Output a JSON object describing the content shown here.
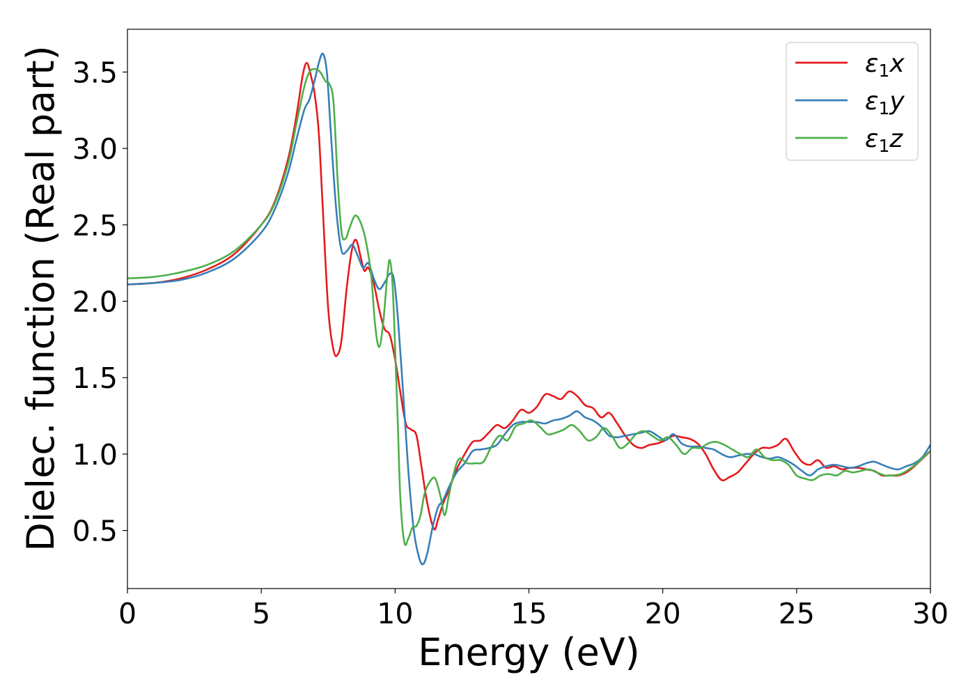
{
  "chart_data": {
    "type": "line",
    "xlabel": "Energy (eV)",
    "ylabel": "Dielec. function (Real part)",
    "xlim": [
      0,
      30
    ],
    "ylim": [
      0.12,
      3.78
    ],
    "xticks": [
      0,
      5,
      10,
      15,
      20,
      25,
      30
    ],
    "xtick_labels": [
      "0",
      "5",
      "10",
      "15",
      "20",
      "25",
      "30"
    ],
    "yticks": [
      0.5,
      1.0,
      1.5,
      2.0,
      2.5,
      3.0,
      3.5
    ],
    "ytick_labels": [
      "0.5",
      "1.0",
      "1.5",
      "2.0",
      "2.5",
      "3.0",
      "3.5"
    ],
    "grid": false,
    "legend_position": "top-right",
    "series": [
      {
        "name": "ε1x",
        "name_base": "ε",
        "name_sub": "1",
        "name_tail": "x",
        "color": "#e41a1c",
        "points": [
          [
            0,
            2.11
          ],
          [
            1,
            2.12
          ],
          [
            2,
            2.15
          ],
          [
            3,
            2.21
          ],
          [
            4,
            2.31
          ],
          [
            5,
            2.5
          ],
          [
            5.5,
            2.65
          ],
          [
            6,
            2.93
          ],
          [
            6.3,
            3.2
          ],
          [
            6.55,
            3.48
          ],
          [
            6.7,
            3.56
          ],
          [
            6.85,
            3.48
          ],
          [
            7.0,
            3.35
          ],
          [
            7.15,
            3.1
          ],
          [
            7.3,
            2.6
          ],
          [
            7.5,
            1.95
          ],
          [
            7.7,
            1.68
          ],
          [
            7.85,
            1.65
          ],
          [
            8.0,
            1.75
          ],
          [
            8.2,
            2.1
          ],
          [
            8.4,
            2.35
          ],
          [
            8.55,
            2.4
          ],
          [
            8.7,
            2.3
          ],
          [
            8.85,
            2.2
          ],
          [
            9.0,
            2.22
          ],
          [
            9.2,
            2.12
          ],
          [
            9.4,
            1.95
          ],
          [
            9.6,
            1.82
          ],
          [
            9.8,
            1.78
          ],
          [
            10.0,
            1.62
          ],
          [
            10.2,
            1.4
          ],
          [
            10.4,
            1.2
          ],
          [
            10.6,
            1.16
          ],
          [
            10.8,
            1.12
          ],
          [
            11.0,
            0.9
          ],
          [
            11.2,
            0.68
          ],
          [
            11.45,
            0.51
          ],
          [
            11.6,
            0.57
          ],
          [
            11.8,
            0.68
          ],
          [
            12.0,
            0.76
          ],
          [
            12.3,
            0.9
          ],
          [
            12.6,
            1.0
          ],
          [
            12.9,
            1.08
          ],
          [
            13.2,
            1.09
          ],
          [
            13.5,
            1.14
          ],
          [
            13.8,
            1.19
          ],
          [
            14.1,
            1.17
          ],
          [
            14.4,
            1.22
          ],
          [
            14.7,
            1.29
          ],
          [
            15.0,
            1.27
          ],
          [
            15.3,
            1.31
          ],
          [
            15.6,
            1.39
          ],
          [
            15.9,
            1.38
          ],
          [
            16.2,
            1.36
          ],
          [
            16.5,
            1.41
          ],
          [
            16.8,
            1.38
          ],
          [
            17.1,
            1.32
          ],
          [
            17.4,
            1.3
          ],
          [
            17.7,
            1.24
          ],
          [
            18.0,
            1.27
          ],
          [
            18.3,
            1.2
          ],
          [
            18.6,
            1.12
          ],
          [
            18.9,
            1.06
          ],
          [
            19.2,
            1.04
          ],
          [
            19.5,
            1.06
          ],
          [
            19.8,
            1.07
          ],
          [
            20.1,
            1.09
          ],
          [
            20.4,
            1.12
          ],
          [
            20.7,
            1.11
          ],
          [
            21.0,
            1.1
          ],
          [
            21.3,
            1.07
          ],
          [
            21.6,
            1.0
          ],
          [
            21.9,
            0.9
          ],
          [
            22.2,
            0.83
          ],
          [
            22.5,
            0.85
          ],
          [
            22.8,
            0.88
          ],
          [
            23.1,
            0.94
          ],
          [
            23.4,
            1.0
          ],
          [
            23.7,
            1.04
          ],
          [
            24.0,
            1.04
          ],
          [
            24.3,
            1.06
          ],
          [
            24.6,
            1.1
          ],
          [
            24.9,
            1.02
          ],
          [
            25.2,
            0.95
          ],
          [
            25.5,
            0.93
          ],
          [
            25.8,
            0.96
          ],
          [
            26.1,
            0.91
          ],
          [
            26.4,
            0.92
          ],
          [
            26.7,
            0.9
          ],
          [
            27.0,
            0.91
          ],
          [
            27.3,
            0.91
          ],
          [
            27.6,
            0.9
          ],
          [
            27.9,
            0.89
          ],
          [
            28.2,
            0.86
          ],
          [
            28.5,
            0.86
          ],
          [
            28.8,
            0.86
          ],
          [
            29.1,
            0.88
          ],
          [
            29.4,
            0.92
          ],
          [
            29.7,
            0.97
          ],
          [
            30.0,
            1.02
          ]
        ]
      },
      {
        "name": "ε1y",
        "name_base": "ε",
        "name_sub": "1",
        "name_tail": "y",
        "color": "#377eb8",
        "points": [
          [
            0,
            2.11
          ],
          [
            1,
            2.12
          ],
          [
            2,
            2.14
          ],
          [
            3,
            2.19
          ],
          [
            4,
            2.28
          ],
          [
            5,
            2.45
          ],
          [
            5.5,
            2.6
          ],
          [
            6,
            2.84
          ],
          [
            6.3,
            3.05
          ],
          [
            6.6,
            3.25
          ],
          [
            6.8,
            3.32
          ],
          [
            7.0,
            3.45
          ],
          [
            7.15,
            3.56
          ],
          [
            7.3,
            3.62
          ],
          [
            7.45,
            3.5
          ],
          [
            7.6,
            3.1
          ],
          [
            7.8,
            2.6
          ],
          [
            8.0,
            2.33
          ],
          [
            8.2,
            2.33
          ],
          [
            8.4,
            2.37
          ],
          [
            8.6,
            2.3
          ],
          [
            8.8,
            2.22
          ],
          [
            9.0,
            2.25
          ],
          [
            9.2,
            2.15
          ],
          [
            9.4,
            2.08
          ],
          [
            9.6,
            2.12
          ],
          [
            9.8,
            2.18
          ],
          [
            9.95,
            2.15
          ],
          [
            10.1,
            1.9
          ],
          [
            10.3,
            1.4
          ],
          [
            10.5,
            0.88
          ],
          [
            10.7,
            0.5
          ],
          [
            10.9,
            0.32
          ],
          [
            11.05,
            0.28
          ],
          [
            11.2,
            0.35
          ],
          [
            11.4,
            0.52
          ],
          [
            11.6,
            0.65
          ],
          [
            11.8,
            0.7
          ],
          [
            12.0,
            0.78
          ],
          [
            12.3,
            0.88
          ],
          [
            12.6,
            0.94
          ],
          [
            12.9,
            1.02
          ],
          [
            13.2,
            1.03
          ],
          [
            13.5,
            1.04
          ],
          [
            13.8,
            1.06
          ],
          [
            14.1,
            1.13
          ],
          [
            14.4,
            1.19
          ],
          [
            14.7,
            1.21
          ],
          [
            15.0,
            1.21
          ],
          [
            15.3,
            1.21
          ],
          [
            15.6,
            1.2
          ],
          [
            15.9,
            1.22
          ],
          [
            16.2,
            1.23
          ],
          [
            16.5,
            1.25
          ],
          [
            16.8,
            1.28
          ],
          [
            17.1,
            1.24
          ],
          [
            17.4,
            1.22
          ],
          [
            17.7,
            1.18
          ],
          [
            18.0,
            1.12
          ],
          [
            18.3,
            1.11
          ],
          [
            18.6,
            1.12
          ],
          [
            18.9,
            1.13
          ],
          [
            19.2,
            1.14
          ],
          [
            19.5,
            1.15
          ],
          [
            19.8,
            1.12
          ],
          [
            20.1,
            1.09
          ],
          [
            20.4,
            1.13
          ],
          [
            20.7,
            1.07
          ],
          [
            21.0,
            1.05
          ],
          [
            21.3,
            1.05
          ],
          [
            21.6,
            1.04
          ],
          [
            21.9,
            1.03
          ],
          [
            22.2,
            1.0
          ],
          [
            22.5,
            0.98
          ],
          [
            22.8,
            0.99
          ],
          [
            23.1,
            1.0
          ],
          [
            23.4,
            1.0
          ],
          [
            23.7,
            0.98
          ],
          [
            24.0,
            0.97
          ],
          [
            24.3,
            0.98
          ],
          [
            24.6,
            0.96
          ],
          [
            24.9,
            0.93
          ],
          [
            25.2,
            0.89
          ],
          [
            25.5,
            0.86
          ],
          [
            25.8,
            0.9
          ],
          [
            26.1,
            0.92
          ],
          [
            26.4,
            0.93
          ],
          [
            26.7,
            0.92
          ],
          [
            27.0,
            0.91
          ],
          [
            27.3,
            0.92
          ],
          [
            27.6,
            0.94
          ],
          [
            27.9,
            0.95
          ],
          [
            28.2,
            0.93
          ],
          [
            28.5,
            0.91
          ],
          [
            28.8,
            0.9
          ],
          [
            29.1,
            0.92
          ],
          [
            29.4,
            0.94
          ],
          [
            29.7,
            0.98
          ],
          [
            30.0,
            1.06
          ]
        ]
      },
      {
        "name": "ε1z",
        "name_base": "ε",
        "name_sub": "1",
        "name_tail": "z",
        "color": "#4daf4a",
        "points": [
          [
            0,
            2.15
          ],
          [
            1,
            2.16
          ],
          [
            2,
            2.19
          ],
          [
            3,
            2.24
          ],
          [
            4,
            2.33
          ],
          [
            5,
            2.5
          ],
          [
            5.5,
            2.64
          ],
          [
            6,
            2.9
          ],
          [
            6.3,
            3.15
          ],
          [
            6.6,
            3.4
          ],
          [
            6.8,
            3.5
          ],
          [
            7.0,
            3.52
          ],
          [
            7.2,
            3.5
          ],
          [
            7.4,
            3.44
          ],
          [
            7.55,
            3.42
          ],
          [
            7.7,
            3.3
          ],
          [
            7.85,
            2.8
          ],
          [
            8.0,
            2.45
          ],
          [
            8.15,
            2.41
          ],
          [
            8.3,
            2.48
          ],
          [
            8.5,
            2.56
          ],
          [
            8.7,
            2.52
          ],
          [
            8.9,
            2.4
          ],
          [
            9.1,
            2.18
          ],
          [
            9.25,
            1.85
          ],
          [
            9.4,
            1.7
          ],
          [
            9.55,
            1.85
          ],
          [
            9.7,
            2.15
          ],
          [
            9.8,
            2.27
          ],
          [
            9.9,
            2.12
          ],
          [
            10.0,
            1.7
          ],
          [
            10.1,
            1.2
          ],
          [
            10.2,
            0.7
          ],
          [
            10.35,
            0.42
          ],
          [
            10.5,
            0.45
          ],
          [
            10.65,
            0.52
          ],
          [
            10.8,
            0.53
          ],
          [
            10.95,
            0.6
          ],
          [
            11.1,
            0.74
          ],
          [
            11.3,
            0.82
          ],
          [
            11.5,
            0.84
          ],
          [
            11.7,
            0.72
          ],
          [
            11.85,
            0.6
          ],
          [
            12.0,
            0.72
          ],
          [
            12.2,
            0.88
          ],
          [
            12.4,
            0.97
          ],
          [
            12.7,
            0.94
          ],
          [
            13.0,
            0.94
          ],
          [
            13.3,
            0.95
          ],
          [
            13.6,
            1.05
          ],
          [
            13.9,
            1.12
          ],
          [
            14.2,
            1.09
          ],
          [
            14.5,
            1.18
          ],
          [
            14.8,
            1.2
          ],
          [
            15.1,
            1.22
          ],
          [
            15.4,
            1.18
          ],
          [
            15.7,
            1.13
          ],
          [
            16.0,
            1.14
          ],
          [
            16.3,
            1.16
          ],
          [
            16.6,
            1.19
          ],
          [
            16.9,
            1.15
          ],
          [
            17.2,
            1.09
          ],
          [
            17.5,
            1.11
          ],
          [
            17.8,
            1.17
          ],
          [
            18.1,
            1.12
          ],
          [
            18.4,
            1.04
          ],
          [
            18.7,
            1.07
          ],
          [
            19.0,
            1.13
          ],
          [
            19.3,
            1.15
          ],
          [
            19.6,
            1.12
          ],
          [
            19.9,
            1.09
          ],
          [
            20.2,
            1.11
          ],
          [
            20.5,
            1.06
          ],
          [
            20.8,
            1.0
          ],
          [
            21.1,
            1.04
          ],
          [
            21.4,
            1.04
          ],
          [
            21.7,
            1.07
          ],
          [
            22.0,
            1.08
          ],
          [
            22.3,
            1.06
          ],
          [
            22.6,
            1.03
          ],
          [
            22.9,
            1.0
          ],
          [
            23.2,
            0.98
          ],
          [
            23.5,
            1.03
          ],
          [
            23.8,
            0.98
          ],
          [
            24.1,
            0.96
          ],
          [
            24.4,
            0.96
          ],
          [
            24.7,
            0.93
          ],
          [
            25.0,
            0.86
          ],
          [
            25.3,
            0.84
          ],
          [
            25.6,
            0.83
          ],
          [
            25.9,
            0.86
          ],
          [
            26.2,
            0.87
          ],
          [
            26.5,
            0.86
          ],
          [
            26.8,
            0.89
          ],
          [
            27.1,
            0.88
          ],
          [
            27.4,
            0.89
          ],
          [
            27.7,
            0.9
          ],
          [
            28.0,
            0.88
          ],
          [
            28.3,
            0.86
          ],
          [
            28.6,
            0.86
          ],
          [
            28.9,
            0.87
          ],
          [
            29.2,
            0.9
          ],
          [
            29.5,
            0.94
          ],
          [
            29.8,
            0.99
          ],
          [
            30.0,
            1.02
          ]
        ]
      }
    ]
  }
}
